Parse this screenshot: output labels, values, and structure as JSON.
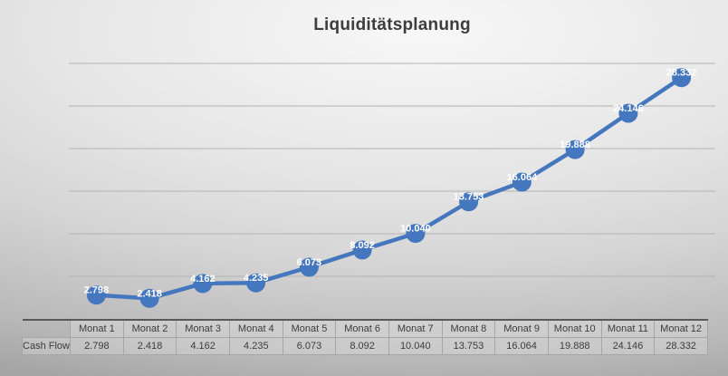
{
  "title": "Liquiditätsplanung",
  "chart_data": {
    "type": "line",
    "title": "Liquiditätsplanung",
    "categories": [
      "Monat 1",
      "Monat 2",
      "Monat 3",
      "Monat 4",
      "Monat 5",
      "Monat 6",
      "Monat 7",
      "Monat 8",
      "Monat 9",
      "Monat 10",
      "Monat 11",
      "Monat 12"
    ],
    "series": [
      {
        "name": "Cash Flow",
        "values": [
          2798,
          2418,
          4162,
          4235,
          6073,
          8092,
          10040,
          13753,
          16064,
          19888,
          24146,
          28332
        ],
        "labels": [
          "2.798",
          "2.418",
          "4.162",
          "4.235",
          "6.073",
          "8.092",
          "10.040",
          "13.753",
          "16.064",
          "19.888",
          "24.146",
          "28.332"
        ]
      }
    ],
    "xlabel": "",
    "ylabel": "",
    "ylim": [
      0,
      30000
    ],
    "grid_step": 5000,
    "grid": true,
    "y_tick_labels_visible": false,
    "legend_position": "none",
    "marker": "circle",
    "data_label_style": "white bold, centered on marker"
  },
  "data_table": {
    "columns": [
      "Monat 1",
      "Monat 2",
      "Monat 3",
      "Monat 4",
      "Monat 5",
      "Monat 6",
      "Monat 7",
      "Monat 8",
      "Monat 9",
      "Monat 10",
      "Monat 11",
      "Monat 12"
    ],
    "rows": [
      {
        "label": "Cash Flow",
        "values": [
          "2.798",
          "2.418",
          "4.162",
          "4.235",
          "6.073",
          "8.092",
          "10.040",
          "13.753",
          "16.064",
          "19.888",
          "24.146",
          "28.332"
        ]
      }
    ]
  },
  "colors": {
    "series_blue": "#4577be",
    "data_label_text": "#ffffff",
    "gridline": "#b3b3b3",
    "axis_line": "#595959",
    "table_border": "#a6a6a6",
    "title_text": "#3d3d3d",
    "table_text": "#3c3c3c"
  }
}
